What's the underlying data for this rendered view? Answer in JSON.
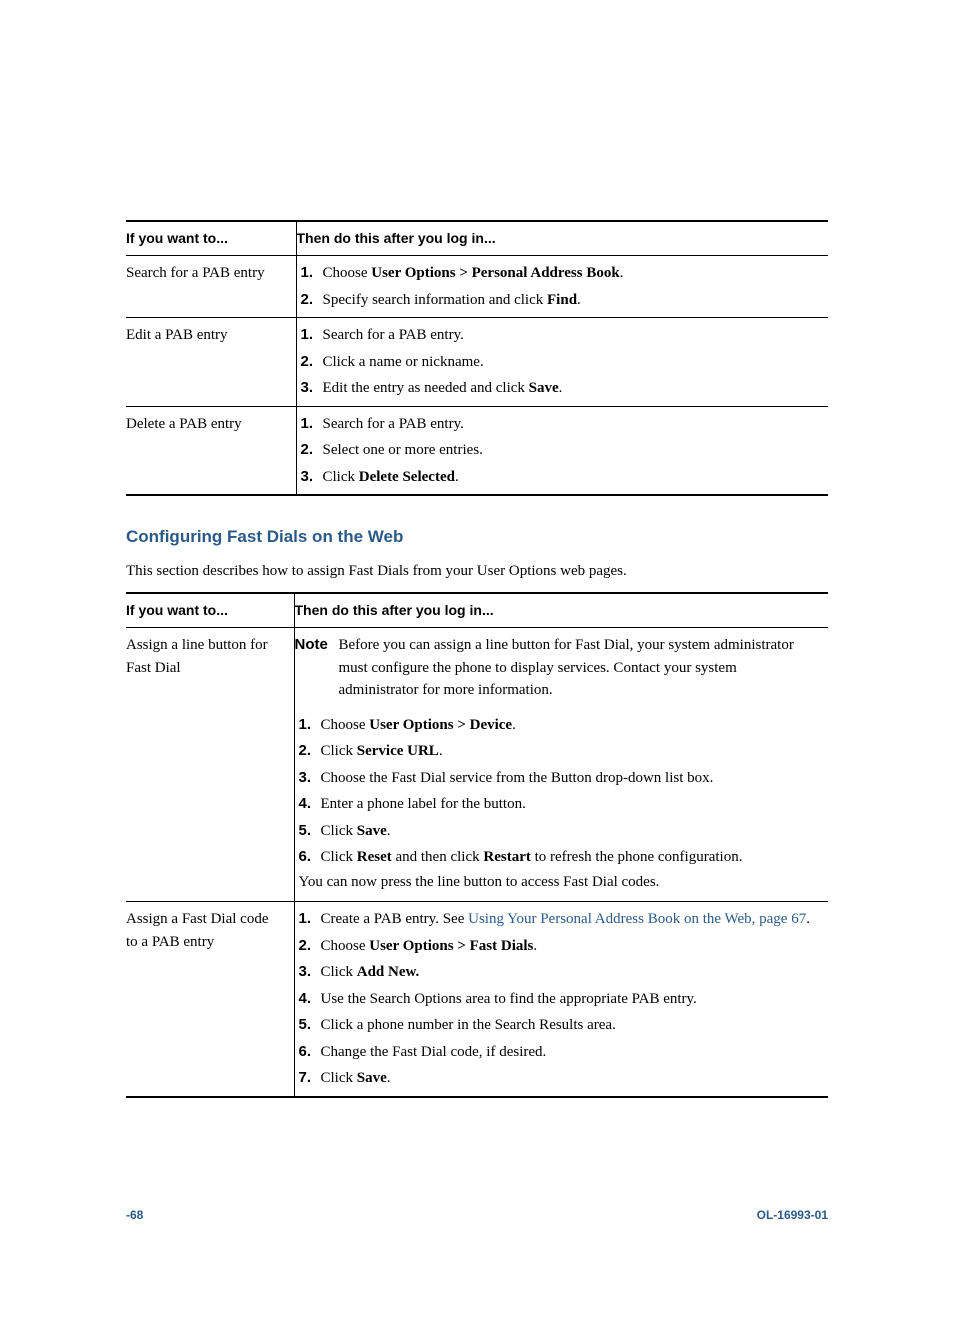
{
  "table1": {
    "header_left": "If you want to...",
    "header_right": "Then do this after you log in...",
    "rows": [
      {
        "left": "Search for a PAB entry",
        "steps": [
          {
            "n": "1.",
            "prefix": "Choose ",
            "bold": "User Options > Personal Address Book",
            "suffix": "."
          },
          {
            "n": "2.",
            "prefix": "Specify search information and click ",
            "bold": "Find",
            "suffix": "."
          }
        ]
      },
      {
        "left": "Edit a PAB entry",
        "steps": [
          {
            "n": "1.",
            "prefix": "Search for a PAB entry.",
            "bold": "",
            "suffix": ""
          },
          {
            "n": "2.",
            "prefix": "Click a name or nickname.",
            "bold": "",
            "suffix": ""
          },
          {
            "n": "3.",
            "prefix": "Edit the entry as needed and click ",
            "bold": "Save",
            "suffix": "."
          }
        ]
      },
      {
        "left": "Delete a PAB entry",
        "steps": [
          {
            "n": "1.",
            "prefix": "Search for a PAB entry.",
            "bold": "",
            "suffix": ""
          },
          {
            "n": "2.",
            "prefix": "Select one or more entries.",
            "bold": "",
            "suffix": ""
          },
          {
            "n": "3.",
            "prefix": "Click ",
            "bold": "Delete Selected",
            "suffix": "."
          }
        ]
      }
    ]
  },
  "section": {
    "heading": "Configuring Fast Dials on the Web",
    "intro": "This section describes how to assign Fast Dials from your User Options web pages."
  },
  "table2": {
    "header_left": "If you want to...",
    "header_right": "Then do this after you log in...",
    "row1": {
      "left": "Assign a line button for Fast Dial",
      "note_label": "Note",
      "note_text": "Before you can assign a line button for Fast Dial, your system administrator must configure the phone to display services. Contact your system administrator for more information.",
      "steps": [
        {
          "n": "1.",
          "prefix": "Choose ",
          "bold": "User Options > Device",
          "suffix": "."
        },
        {
          "n": "2.",
          "prefix": "Click ",
          "bold": "Service URL",
          "suffix": "."
        },
        {
          "n": "3.",
          "prefix": "Choose the Fast Dial service from the Button drop-down list box.",
          "bold": "",
          "suffix": ""
        },
        {
          "n": "4.",
          "prefix": "Enter a phone label for the button.",
          "bold": "",
          "suffix": ""
        },
        {
          "n": "5.",
          "prefix": "Click ",
          "bold": "Save",
          "suffix": "."
        },
        {
          "n": "6.",
          "prefix": "Click ",
          "bold": "Reset",
          "mid": " and then click ",
          "bold2": "Restart",
          "suffix": " to refresh the phone configuration."
        }
      ],
      "follow": "You can now press the line button to access Fast Dial codes."
    },
    "row2": {
      "left": "Assign a Fast Dial code to a PAB entry",
      "steps": [
        {
          "n": "1.",
          "prefix": "Create a PAB entry. See ",
          "link": "Using Your Personal Address Book on the Web, page 67",
          "suffix": "."
        },
        {
          "n": "2.",
          "prefix": "Choose ",
          "bold": "User Options > Fast Dials",
          "suffix": "."
        },
        {
          "n": "3.",
          "prefix": "Click ",
          "bold": "Add New.",
          "suffix": ""
        },
        {
          "n": "4.",
          "prefix": "Use the Search Options area to find the appropriate PAB entry.",
          "bold": "",
          "suffix": ""
        },
        {
          "n": "5.",
          "prefix": "Click a phone number in the Search Results area.",
          "bold": "",
          "suffix": ""
        },
        {
          "n": "6.",
          "prefix": "Change the Fast Dial code, if desired.",
          "bold": "",
          "suffix": ""
        },
        {
          "n": "7.",
          "prefix": "Click ",
          "bold": "Save",
          "suffix": "."
        }
      ]
    }
  },
  "footer": {
    "page": "-68",
    "docid": "OL-16993-01"
  }
}
